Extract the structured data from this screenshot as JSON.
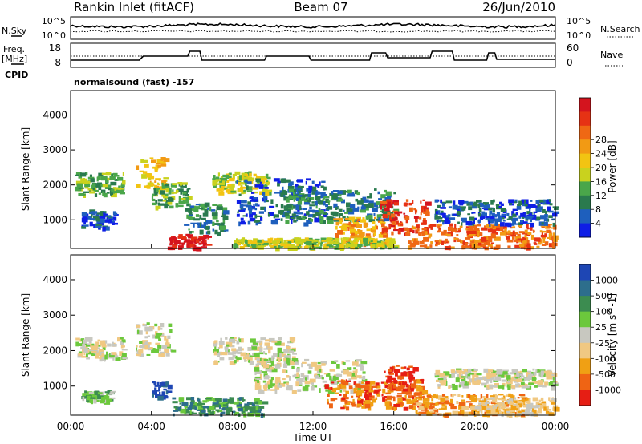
{
  "header": {
    "station": "Rankin Inlet (fitACF)",
    "beam": "Beam 07",
    "date": "26/Jun/2010"
  },
  "nsky_panel": {
    "left_label": "N.Sky",
    "left_ticks": [
      "10^5",
      "10^0"
    ],
    "right_ticks": [
      "10^5",
      "10^0"
    ],
    "right_label": "N.Search"
  },
  "freq_panel": {
    "left_label_line1": "Freq.",
    "left_label_line2": "[MHz]",
    "left_ticks": [
      "18",
      "8"
    ],
    "right_ticks": [
      "60",
      "0"
    ],
    "right_label": "Nave"
  },
  "cpid": {
    "label": "CPID",
    "mode": "normalsound (fast) -157"
  },
  "x_axis": {
    "label": "Time UT",
    "ticks": [
      "00:00",
      "04:00",
      "08:00",
      "12:00",
      "16:00",
      "20:00",
      "00:00"
    ]
  },
  "chart_data": [
    {
      "type": "heatmap",
      "quantity": "power",
      "ylabel": "Slant Range [km]",
      "xlabel": "",
      "y_ticks": [
        "1000",
        "2000",
        "3000",
        "4000"
      ],
      "xlim_hours": [
        0,
        24
      ],
      "ylim_km": [
        180,
        4700
      ],
      "colorbar": {
        "label": "Power [dB]",
        "ticks": [
          "4",
          "8",
          "12",
          "16",
          "20",
          "24",
          "28"
        ],
        "colors": [
          "#0f1ee6",
          "#1e5fbd",
          "#2a7a4e",
          "#4aa64a",
          "#c9d21e",
          "#f2c412",
          "#f29a14",
          "#ef6814",
          "#e63214",
          "#d4141e"
        ]
      },
      "regions": [
        {
          "t0": 0.2,
          "t1": 2.6,
          "r0": 1750,
          "r1": 2400,
          "level": 3
        },
        {
          "t0": 0.5,
          "t1": 2.2,
          "r0": 800,
          "r1": 1300,
          "level": 1
        },
        {
          "t0": 3.2,
          "t1": 4.6,
          "r0": 1900,
          "r1": 2800,
          "level": 5
        },
        {
          "t0": 4.0,
          "t1": 5.8,
          "r0": 1400,
          "r1": 2100,
          "level": 3
        },
        {
          "t0": 4.8,
          "t1": 6.8,
          "r0": 180,
          "r1": 600,
          "level": 9
        },
        {
          "t0": 5.6,
          "t1": 7.6,
          "r0": 600,
          "r1": 1500,
          "level": 2
        },
        {
          "t0": 7.0,
          "t1": 9.8,
          "r0": 1800,
          "r1": 2400,
          "level": 4
        },
        {
          "t0": 8.2,
          "t1": 12.5,
          "r0": 900,
          "r1": 2200,
          "level": 1
        },
        {
          "t0": 10.5,
          "t1": 16.0,
          "r0": 1000,
          "r1": 1900,
          "level": 2
        },
        {
          "t0": 13.0,
          "t1": 15.5,
          "r0": 350,
          "r1": 1100,
          "level": 6
        },
        {
          "t0": 15.3,
          "t1": 17.6,
          "r0": 600,
          "r1": 1600,
          "level": 8
        },
        {
          "t0": 16.5,
          "t1": 24.0,
          "r0": 180,
          "r1": 900,
          "level": 7
        },
        {
          "t0": 18.0,
          "t1": 24.0,
          "r0": 900,
          "r1": 1600,
          "level": 1
        },
        {
          "t0": 8.0,
          "t1": 16.0,
          "r0": 180,
          "r1": 500,
          "level": 4
        }
      ]
    },
    {
      "type": "heatmap",
      "quantity": "velocity",
      "ylabel": "Slant Range [km]",
      "xlabel": "Time UT",
      "y_ticks": [
        "1000",
        "2000",
        "3000",
        "4000"
      ],
      "xlim_hours": [
        0,
        24
      ],
      "ylim_km": [
        180,
        4700
      ],
      "colorbar": {
        "label": "Velocity [m s^-1]",
        "ticks": [
          "1000",
          "500",
          "100",
          "25",
          "-25",
          "-100",
          "-500",
          "-1000"
        ],
        "colors": [
          "#1e46b4",
          "#2d6e8c",
          "#3c8c50",
          "#6cc83c",
          "#c8c8c0",
          "#f0c882",
          "#f0a014",
          "#ef6414",
          "#e61e14"
        ]
      },
      "regions": [
        {
          "t0": 0.2,
          "t1": 2.6,
          "r0": 1800,
          "r1": 2400,
          "level": 4
        },
        {
          "t0": 0.5,
          "t1": 2.0,
          "r0": 600,
          "r1": 900,
          "level": 3
        },
        {
          "t0": 3.2,
          "t1": 5.0,
          "r0": 1900,
          "r1": 2800,
          "level": 4
        },
        {
          "t0": 4.0,
          "t1": 4.8,
          "r0": 700,
          "r1": 1200,
          "level": 0
        },
        {
          "t0": 5.0,
          "t1": 9.5,
          "r0": 180,
          "r1": 700,
          "level": 2
        },
        {
          "t0": 7.0,
          "t1": 11.0,
          "r0": 1700,
          "r1": 2400,
          "level": 4
        },
        {
          "t0": 9.0,
          "t1": 14.5,
          "r0": 900,
          "r1": 1800,
          "level": 4
        },
        {
          "t0": 12.5,
          "t1": 17.5,
          "r0": 400,
          "r1": 1200,
          "level": 7
        },
        {
          "t0": 15.5,
          "t1": 17.0,
          "r0": 900,
          "r1": 1600,
          "level": 8
        },
        {
          "t0": 17.0,
          "t1": 22.5,
          "r0": 180,
          "r1": 800,
          "level": 6
        },
        {
          "t0": 20.0,
          "t1": 24.0,
          "r0": 180,
          "r1": 700,
          "level": 5
        },
        {
          "t0": 18.0,
          "t1": 24.0,
          "r0": 1000,
          "r1": 1500,
          "level": 4
        }
      ]
    }
  ]
}
